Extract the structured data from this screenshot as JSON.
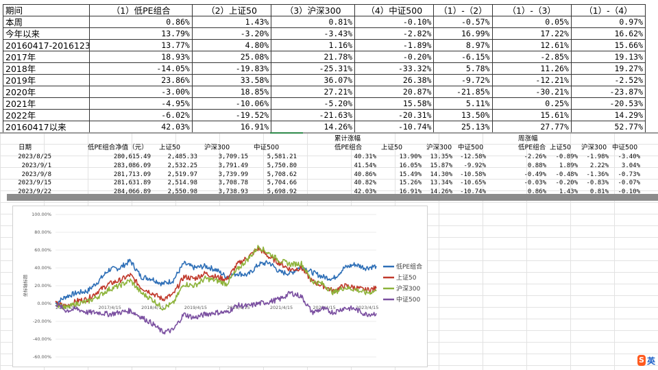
{
  "summary_table": {
    "headers": [
      "期间",
      "（1）低PE组合",
      "（2）上证50",
      "（3）沪深300",
      "（4）中证500",
      "（1）-（2）",
      "（1）-（3）",
      "（1）-（4）"
    ],
    "rows": [
      [
        "本周",
        "0.86%",
        "1.43%",
        "0.81%",
        "-0.10%",
        "-0.57%",
        "0.05%",
        "0.97%"
      ],
      [
        "今年以来",
        "13.79%",
        "-3.20%",
        "-3.43%",
        "-2.82%",
        "16.99%",
        "17.22%",
        "16.62%"
      ],
      [
        "20160417-20161231",
        "13.77%",
        "4.80%",
        "1.16%",
        "-1.89%",
        "8.97%",
        "12.61%",
        "15.66%"
      ],
      [
        "2017年",
        "18.93%",
        "25.08%",
        "21.78%",
        "-0.20%",
        "-6.15%",
        "-2.85%",
        "19.13%"
      ],
      [
        "2018年",
        "-14.05%",
        "-19.83%",
        "-25.31%",
        "-33.32%",
        "5.78%",
        "11.26%",
        "19.27%"
      ],
      [
        "2019年",
        "23.86%",
        "33.58%",
        "36.07%",
        "26.38%",
        "-9.72%",
        "-12.21%",
        "-2.52%"
      ],
      [
        "2020年",
        "-3.00%",
        "18.85%",
        "27.21%",
        "20.87%",
        "-21.85%",
        "-30.21%",
        "-23.87%"
      ],
      [
        "2021年",
        "-4.95%",
        "-10.06%",
        "-5.20%",
        "15.58%",
        "5.11%",
        "0.25%",
        "-20.53%"
      ],
      [
        "2022年",
        "-6.02%",
        "-19.52%",
        "-21.63%",
        "-20.31%",
        "13.50%",
        "15.61%",
        "14.29%"
      ],
      [
        "20160417以来",
        "42.03%",
        "16.91%",
        "14.26%",
        "-10.74%",
        "25.13%",
        "27.77%",
        "52.77%"
      ]
    ]
  },
  "sheet": {
    "header_cumulative": "累计涨幅",
    "header_weekly": "周涨幅",
    "columns_left": [
      "日期",
      "低PE组合净值（元）",
      "上证50",
      "沪深300",
      "中证500"
    ],
    "columns_mid": [
      "低PE组合",
      "上证50",
      "沪深300",
      "中证500"
    ],
    "columns_right": [
      "低PE组合",
      "上证50",
      "沪深300",
      "中证500"
    ],
    "rows": [
      {
        "date": "2023/8/25",
        "nav": "280,615.49",
        "sz50": "2,485.33",
        "hs300": "3,709.15",
        "zz500": "5,581.21",
        "c1": "40.31%",
        "c2": "13.90%",
        "c3": "13.35%",
        "c4": "-12.58%",
        "w1": "-2.26%",
        "w2": "-0.89%",
        "w3": "-1.98%",
        "w4": "-3.40%"
      },
      {
        "date": "2023/9/1",
        "nav": "283,086.09",
        "sz50": "2,532.25",
        "hs300": "3,791.49",
        "zz500": "5,750.80",
        "c1": "41.54%",
        "c2": "16.05%",
        "c3": "15.87%",
        "c4": "-9.92%",
        "w1": "0.88%",
        "w2": "1.89%",
        "w3": "2.22%",
        "w4": "3.04%"
      },
      {
        "date": "2023/9/8",
        "nav": "281,713.09",
        "sz50": "2,519.97",
        "hs300": "3,739.99",
        "zz500": "5,708.62",
        "c1": "40.86%",
        "c2": "15.49%",
        "c3": "14.30%",
        "c4": "-10.58%",
        "w1": "-0.49%",
        "w2": "-0.48%",
        "w3": "-1.36%",
        "w4": "-0.73%"
      },
      {
        "date": "2023/9/15",
        "nav": "281,631.89",
        "sz50": "2,514.98",
        "hs300": "3,708.78",
        "zz500": "5,704.66",
        "c1": "40.82%",
        "c2": "15.26%",
        "c3": "13.34%",
        "c4": "-10.65%",
        "w1": "-0.03%",
        "w2": "-0.20%",
        "w3": "-0.83%",
        "w4": "-0.07%"
      },
      {
        "date": "2023/9/22",
        "nav": "284,066.89",
        "sz50": "2,550.98",
        "hs300": "3,738.93",
        "zz500": "5,698.92",
        "c1": "42.03%",
        "c2": "16.91%",
        "c3": "14.26%",
        "c4": "-10.74%",
        "w1": "0.86%",
        "w2": "1.43%",
        "w3": "0.81%",
        "w4": "-0.10%"
      }
    ]
  },
  "chart_data": {
    "type": "line",
    "title": "",
    "xlabel": "",
    "ylabel": "坐标轴标题",
    "ylim": [
      -60,
      100
    ],
    "y_ticks": [
      "100.00%",
      "80.00%",
      "60.00%",
      "40.00%",
      "20.00%",
      "0.00%",
      "-20.00%",
      "-40.00%",
      "-60.00%"
    ],
    "x_ticks": [
      "2016/4/15",
      "2017/4/15",
      "2018/4/15",
      "2019/4/15",
      "2020/4/15",
      "2021/4/15",
      "2022/4/15",
      "2023/4/15"
    ],
    "x": [
      "2016/4",
      "2016/7",
      "2016/10",
      "2017/1",
      "2017/4",
      "2017/7",
      "2017/10",
      "2018/1",
      "2018/4",
      "2018/7",
      "2018/10",
      "2019/1",
      "2019/4",
      "2019/7",
      "2019/10",
      "2020/1",
      "2020/4",
      "2020/7",
      "2020/10",
      "2021/1",
      "2021/4",
      "2021/7",
      "2021/10",
      "2022/1",
      "2022/4",
      "2022/7",
      "2022/10",
      "2023/1",
      "2023/4",
      "2023/7",
      "2023/9"
    ],
    "legend_position": "right",
    "series": [
      {
        "name": "低PE组合",
        "color": "#2e6fb7",
        "values": [
          0,
          8,
          12,
          14,
          25,
          38,
          40,
          48,
          30,
          28,
          22,
          26,
          45,
          40,
          42,
          38,
          30,
          34,
          32,
          44,
          46,
          35,
          34,
          42,
          35,
          30,
          28,
          40,
          44,
          40,
          42
        ]
      },
      {
        "name": "上证50",
        "color": "#c0392b",
        "values": [
          0,
          -3,
          3,
          5,
          14,
          22,
          26,
          32,
          18,
          12,
          5,
          10,
          30,
          28,
          34,
          30,
          27,
          44,
          52,
          62,
          52,
          45,
          38,
          40,
          25,
          20,
          14,
          20,
          18,
          15,
          17
        ]
      },
      {
        "name": "沪深300",
        "color": "#8db33a",
        "values": [
          0,
          -5,
          0,
          2,
          8,
          16,
          20,
          26,
          12,
          5,
          -5,
          0,
          22,
          20,
          28,
          26,
          22,
          38,
          50,
          64,
          56,
          48,
          44,
          45,
          25,
          22,
          12,
          18,
          16,
          12,
          14
        ]
      },
      {
        "name": "中证500",
        "color": "#7a4fa0",
        "values": [
          0,
          -8,
          -6,
          -10,
          -10,
          -12,
          -10,
          -8,
          -15,
          -22,
          -32,
          -30,
          -12,
          -16,
          -12,
          -10,
          -10,
          -2,
          -3,
          0,
          2,
          5,
          12,
          8,
          -10,
          -6,
          -10,
          -5,
          -6,
          -12,
          -11
        ]
      }
    ]
  },
  "ime": {
    "logo": "S",
    "lang": "英"
  }
}
